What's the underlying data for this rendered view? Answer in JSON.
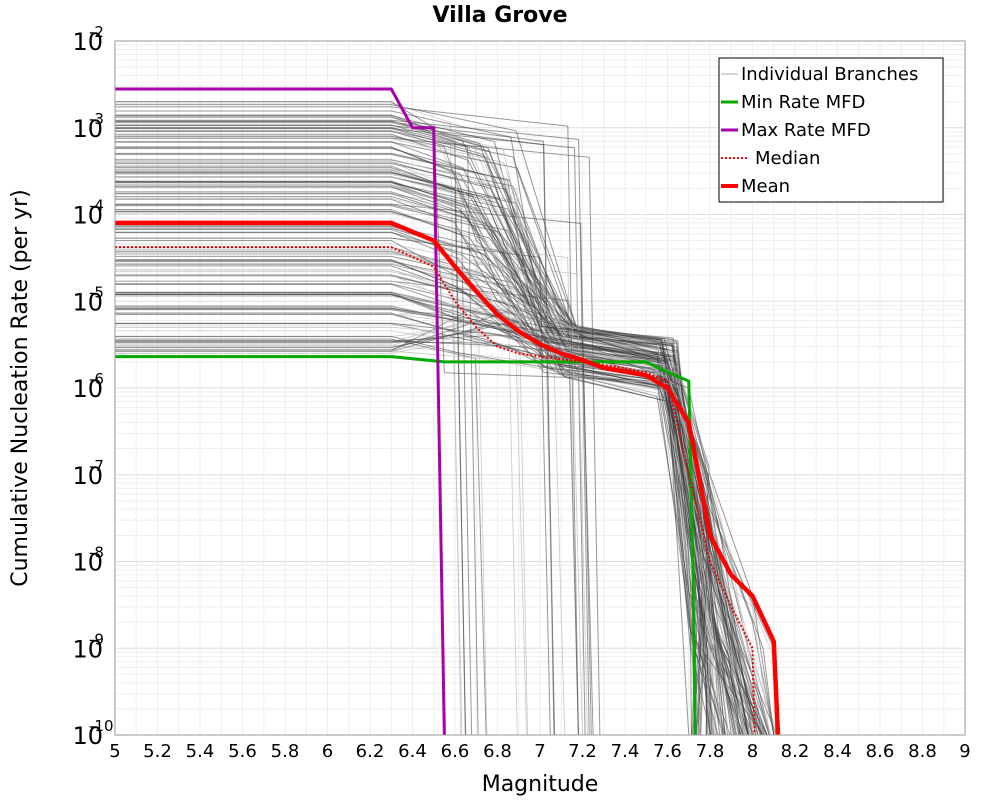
{
  "chart_data": {
    "type": "line",
    "title": "Villa Grove",
    "xlabel": "Magnitude",
    "ylabel": "Cumulative Nucleation Rate (per yr)",
    "xlim": [
      5,
      9
    ],
    "ylim": [
      1e-10,
      0.01
    ],
    "yscale": "log",
    "grid": true,
    "x_ticks": [
      "5",
      "5.2",
      "5.4",
      "5.6",
      "5.8",
      "6",
      "6.2",
      "6.4",
      "6.6",
      "6.8",
      "7",
      "7.2",
      "7.4",
      "7.6",
      "7.8",
      "8",
      "8.2",
      "8.4",
      "8.6",
      "8.8",
      "9"
    ],
    "y_ticks": [
      {
        "base": "10",
        "exp": "-10",
        "value": 1e-10
      },
      {
        "base": "10",
        "exp": "-9",
        "value": 1e-09
      },
      {
        "base": "10",
        "exp": "-8",
        "value": 1e-08
      },
      {
        "base": "10",
        "exp": "-7",
        "value": 1e-07
      },
      {
        "base": "10",
        "exp": "-6",
        "value": 1e-06
      },
      {
        "base": "10",
        "exp": "-5",
        "value": 1e-05
      },
      {
        "base": "10",
        "exp": "-4",
        "value": 0.0001
      },
      {
        "base": "10",
        "exp": "-3",
        "value": 0.001
      },
      {
        "base": "10",
        "exp": "-2",
        "value": 0.01
      }
    ],
    "legend_position": "top-right",
    "series": [
      {
        "name": "Individual Branches",
        "color": "#999999",
        "style": "thin",
        "note": "several hundred logic-tree branch MFDs; representative subset shown",
        "branches": [
          {
            "x": [
              5,
              6.3,
              6.5,
              6.55,
              7.6,
              7.7
            ],
            "y": [
              0.002,
              0.002,
              0.001,
              1.5e-06,
              1.2e-06,
              1e-10
            ]
          },
          {
            "x": [
              5,
              6.3,
              6.5,
              6.7,
              6.75
            ],
            "y": [
              0.0012,
              0.0012,
              0.0008,
              0.0001,
              1e-10
            ]
          },
          {
            "x": [
              5,
              6.3,
              6.55,
              6.7,
              7.2,
              7.25
            ],
            "y": [
              0.0008,
              0.0008,
              0.0006,
              5e-05,
              4e-06,
              1e-10
            ]
          },
          {
            "x": [
              5,
              6.3,
              6.6,
              6.8,
              7.2,
              7.6,
              7.7,
              7.8
            ],
            "y": [
              0.0006,
              0.0006,
              0.0003,
              1.5e-05,
              4e-06,
              2e-06,
              2e-08,
              1e-10
            ]
          },
          {
            "x": [
              5,
              6.3,
              6.6,
              6.9,
              7.15,
              7.2
            ],
            "y": [
              0.0004,
              0.0004,
              0.0002,
              1e-05,
              5e-06,
              1e-10
            ]
          },
          {
            "x": [
              5,
              6.3,
              6.6,
              6.65
            ],
            "y": [
              0.0003,
              0.0003,
              0.0002,
              1e-10
            ]
          },
          {
            "x": [
              5,
              6.3,
              6.6,
              6.8,
              7.0,
              7.6,
              7.8,
              7.9
            ],
            "y": [
              0.00015,
              0.00015,
              8e-05,
              1e-05,
              4e-06,
              2e-06,
              1e-08,
              1e-10
            ]
          },
          {
            "x": [
              5,
              6.3,
              6.5,
              6.8,
              7.0,
              7.6,
              7.75,
              7.9,
              8.0,
              8.1,
              8.12
            ],
            "y": [
              8e-05,
              8e-05,
              5e-05,
              8e-06,
              3e-06,
              1.5e-06,
              1e-07,
              5e-09,
              3e-09,
              8e-10,
              1e-10
            ]
          },
          {
            "x": [
              5,
              6.3,
              6.6,
              6.9,
              7.2,
              7.6,
              7.7,
              7.85,
              8.0,
              8.1
            ],
            "y": [
              5e-05,
              5e-05,
              2e-05,
              5e-06,
              2.5e-06,
              1.5e-06,
              4e-07,
              2e-08,
              2e-09,
              1e-10
            ]
          },
          {
            "x": [
              5,
              6.3,
              6.6,
              6.9,
              7.3,
              7.6,
              7.75,
              7.9,
              8.05,
              8.1
            ],
            "y": [
              3e-05,
              3e-05,
              1.5e-05,
              4e-06,
              2e-06,
              1.2e-06,
              2e-07,
              1e-08,
              1e-09,
              1e-10
            ]
          },
          {
            "x": [
              5,
              6.3,
              6.7,
              7.0,
              7.5,
              7.65,
              7.8,
              8.0,
              8.08
            ],
            "y": [
              2e-05,
              2e-05,
              8e-06,
              3e-06,
              2e-06,
              1e-06,
              5e-08,
              3e-09,
              1e-10
            ]
          },
          {
            "x": [
              5,
              6.3,
              6.7,
              7.0,
              7.6,
              7.8,
              7.95,
              8.1,
              8.11
            ],
            "y": [
              1.2e-05,
              1.2e-05,
              6e-06,
              3e-06,
              2e-06,
              4e-08,
              6e-09,
              1e-09,
              1e-10
            ]
          },
          {
            "x": [
              5,
              6.3,
              6.8,
              7.2,
              7.65,
              7.8,
              8.0,
              8.1
            ],
            "y": [
              8e-06,
              8e-06,
              5e-06,
              3e-06,
              1.5e-06,
              1e-07,
              4e-09,
              1e-10
            ]
          },
          {
            "x": [
              5,
              6.3,
              6.8,
              7.3,
              7.65,
              7.75,
              7.9,
              8.05
            ],
            "y": [
              5e-06,
              5e-06,
              4e-06,
              2.5e-06,
              1.5e-06,
              3e-07,
              1e-08,
              1e-10
            ]
          },
          {
            "x": [
              5,
              6.3,
              6.9,
              7.4,
              7.7,
              7.85,
              8.0
            ],
            "y": [
              3.5e-06,
              3.5e-06,
              3e-06,
              2e-06,
              1e-06,
              2e-08,
              1e-10
            ]
          }
        ]
      },
      {
        "name": "Min Rate MFD",
        "color": "#00aa00",
        "style": "solid",
        "x": [
          5,
          6.3,
          6.55,
          7.5,
          7.58,
          7.7,
          7.72,
          7.73
        ],
        "y": [
          2.3e-06,
          2.3e-06,
          2e-06,
          2e-06,
          1.6e-06,
          1.2e-06,
          8e-09,
          1e-10
        ]
      },
      {
        "name": "Max Rate MFD",
        "color": "#aa00aa",
        "style": "solid",
        "x": [
          5,
          6.3,
          6.4,
          6.5,
          6.55
        ],
        "y": [
          0.0028,
          0.0028,
          0.001,
          0.001,
          1e-10
        ]
      },
      {
        "name": "Median",
        "color": "#ee0000",
        "style": "dotted",
        "x": [
          5,
          6.3,
          6.5,
          6.6,
          6.7,
          6.8,
          6.9,
          7.0,
          7.2,
          7.4,
          7.5,
          7.6,
          7.7,
          7.8,
          7.9,
          8.0,
          8.01
        ],
        "y": [
          4.2e-05,
          4.2e-05,
          2.5e-05,
          1e-05,
          5e-06,
          3e-06,
          2.5e-06,
          2.3e-06,
          2e-06,
          1.7e-06,
          1.5e-06,
          1.2e-06,
          1e-07,
          1e-08,
          3e-09,
          1e-09,
          1e-10
        ]
      },
      {
        "name": "Mean",
        "color": "#ff0000",
        "style": "thick",
        "x": [
          5,
          6.3,
          6.5,
          6.6,
          6.7,
          6.8,
          6.9,
          7.0,
          7.1,
          7.2,
          7.3,
          7.5,
          7.6,
          7.7,
          7.8,
          7.9,
          8.0,
          8.1,
          8.12
        ],
        "y": [
          8e-05,
          8e-05,
          5e-05,
          2.5e-05,
          1.3e-05,
          7e-06,
          4.5e-06,
          3.2e-06,
          2.5e-06,
          2.1e-06,
          1.7e-06,
          1.4e-06,
          1e-06,
          4e-07,
          2e-08,
          7e-09,
          4e-09,
          1.2e-09,
          1e-10
        ]
      }
    ]
  }
}
